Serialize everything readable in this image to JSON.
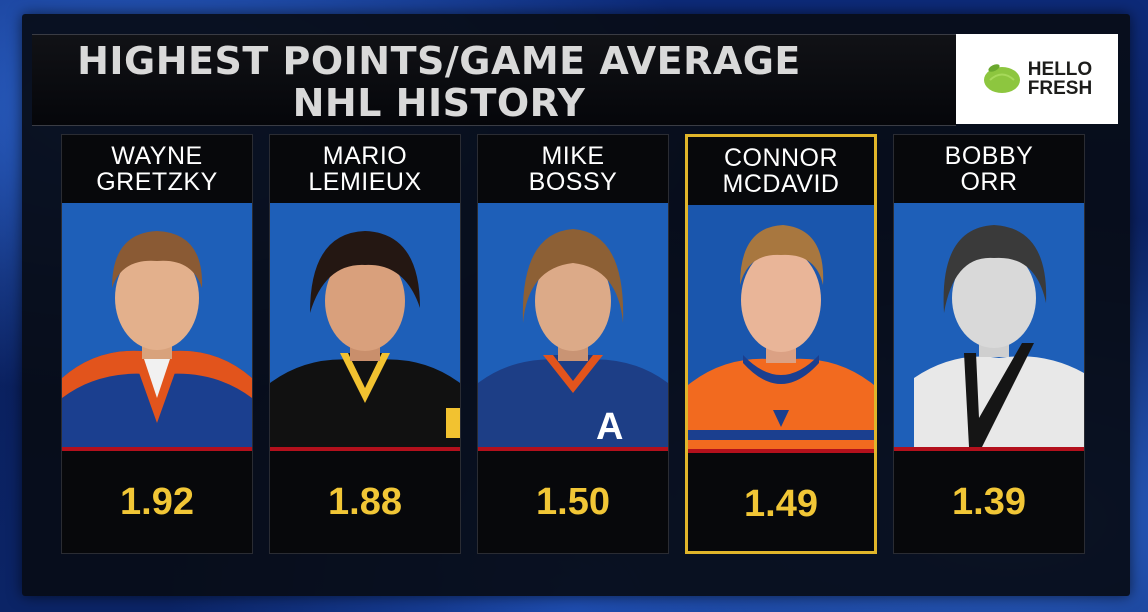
{
  "title": {
    "line1": "HIGHEST POINTS/GAME AVERAGE",
    "line2": "NHL HISTORY"
  },
  "sponsor": {
    "line1": "HELLO",
    "line2": "FRESH",
    "color": "#8dc63f"
  },
  "players": [
    {
      "first": "WAYNE",
      "last": "GRETZKY",
      "value": "1.92",
      "jersey": "orange-blue",
      "highlight": false
    },
    {
      "first": "MARIO",
      "last": "LEMIEUX",
      "value": "1.88",
      "jersey": "black-gold",
      "highlight": false
    },
    {
      "first": "MIKE",
      "last": "BOSSY",
      "value": "1.50",
      "jersey": "blue-orange",
      "highlight": false
    },
    {
      "first": "CONNOR",
      "last": "MCDAVID",
      "value": "1.49",
      "jersey": "orange-blue",
      "highlight": true
    },
    {
      "first": "BOBBY",
      "last": "ORR",
      "value": "1.39",
      "jersey": "white-black",
      "highlight": false
    }
  ],
  "colors": {
    "accent": "#f1c636",
    "highlight_border": "#e0b52a",
    "photo_bg": "#1e5fb8",
    "divider": "#b3101c"
  }
}
